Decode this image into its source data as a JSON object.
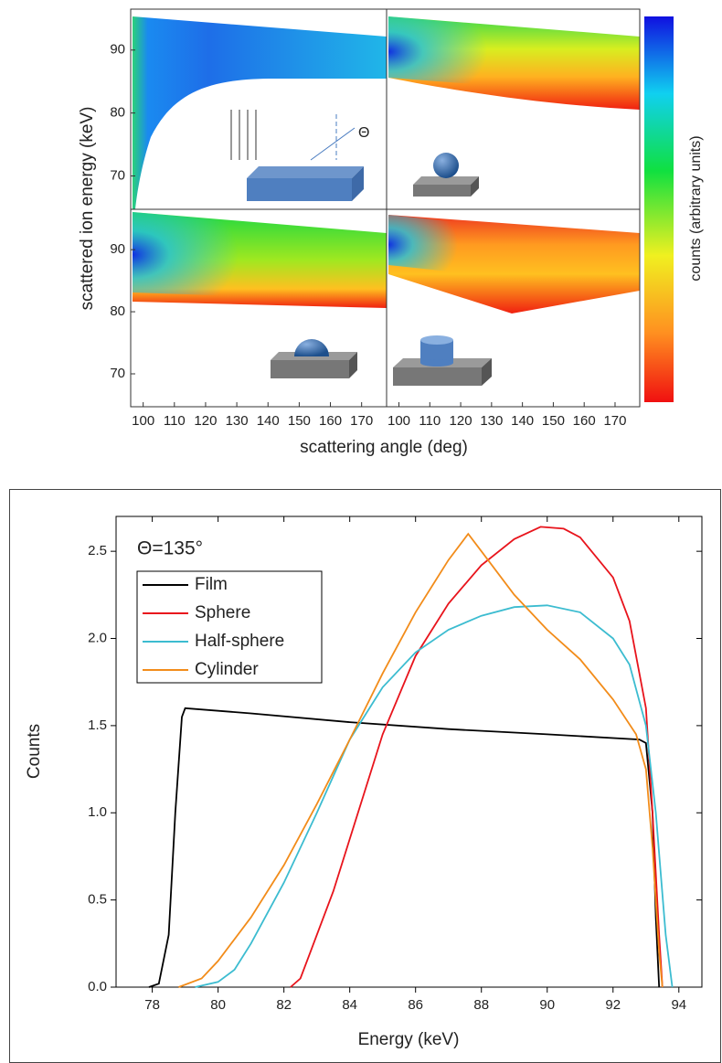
{
  "chart_data": [
    {
      "type": "heatmap",
      "xlabel": "scattering angle (deg)",
      "ylabel": "scattered ion energy (keV)",
      "colorbar_label": "counts (arbitrary units)",
      "annotation": "Θ",
      "xlim": [
        96,
        178
      ],
      "xticks": [
        100,
        110,
        120,
        130,
        140,
        150,
        160,
        170
      ],
      "ylim": [
        64.7,
        96.5
      ],
      "yticks": [
        70,
        80,
        90
      ]
    },
    {
      "type": "line",
      "xlabel": "Energy (keV)",
      "ylabel": "Counts",
      "annotation": "Θ=135°",
      "xlim": [
        76.9,
        94.7
      ],
      "xticks": [
        78,
        80,
        82,
        84,
        86,
        88,
        90,
        92,
        94
      ],
      "ylim": [
        0,
        2.7
      ],
      "yticks": [
        {
          "value": 0,
          "label": "0.0"
        },
        0.5,
        {
          "value": 1,
          "label": "1.0"
        },
        1.5,
        {
          "value": 2,
          "label": "2.0"
        },
        2.5
      ],
      "series": [
        {
          "name": "Film",
          "color": "#000000",
          "x": [
            77.9,
            78.2,
            78.5,
            78.7,
            78.9,
            79.0,
            81,
            84,
            87,
            90,
            92.8,
            93.0,
            93.2,
            93.3,
            93.4
          ],
          "values": [
            0,
            0.02,
            0.3,
            1.0,
            1.55,
            1.6,
            1.57,
            1.52,
            1.48,
            1.45,
            1.42,
            1.4,
            1.0,
            0.4,
            0
          ]
        },
        {
          "name": "Sphere",
          "color": "#e8141c",
          "x": [
            82.2,
            82.5,
            82.8,
            83.5,
            84,
            85,
            86,
            87,
            88,
            89,
            89.8,
            90.5,
            91,
            92,
            92.5,
            93.0,
            93.2,
            93.4,
            93.5
          ],
          "values": [
            0,
            0.05,
            0.2,
            0.55,
            0.85,
            1.45,
            1.9,
            2.2,
            2.42,
            2.57,
            2.64,
            2.63,
            2.58,
            2.35,
            2.1,
            1.6,
            1.0,
            0.3,
            0
          ]
        },
        {
          "name": "Half-sphere",
          "color": "#3cbcd0",
          "x": [
            79.3,
            80,
            80.5,
            81,
            82,
            83,
            84,
            85,
            86,
            87,
            88,
            89,
            90,
            91,
            92,
            92.5,
            93,
            93.3,
            93.6,
            93.8
          ],
          "values": [
            0,
            0.03,
            0.1,
            0.25,
            0.6,
            1.0,
            1.42,
            1.72,
            1.92,
            2.05,
            2.13,
            2.18,
            2.19,
            2.15,
            2.0,
            1.85,
            1.5,
            1.0,
            0.3,
            0
          ]
        },
        {
          "name": "Cylinder",
          "color": "#f28c1a",
          "x": [
            78.8,
            79.5,
            80,
            81,
            82,
            83,
            84,
            85,
            86,
            87,
            87.6,
            88,
            89,
            90,
            91,
            92,
            92.7,
            93,
            93.2,
            93.4,
            93.5
          ],
          "values": [
            0,
            0.05,
            0.15,
            0.4,
            0.7,
            1.05,
            1.42,
            1.8,
            2.15,
            2.45,
            2.6,
            2.5,
            2.25,
            2.05,
            1.88,
            1.65,
            1.45,
            1.25,
            0.8,
            0.2,
            0
          ]
        }
      ]
    }
  ]
}
